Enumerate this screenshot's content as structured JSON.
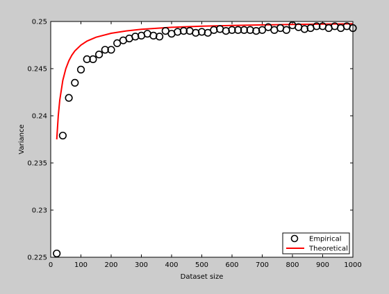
{
  "chart_data": {
    "type": "scatter",
    "title": "",
    "xlabel": "Dataset size",
    "ylabel": "Variance",
    "xlim": [
      0,
      1000
    ],
    "ylim": [
      0.225,
      0.25
    ],
    "xticks": [
      0,
      100,
      200,
      300,
      400,
      500,
      600,
      700,
      800,
      900,
      1000
    ],
    "xtick_labels": [
      "0",
      "100",
      "200",
      "300",
      "400",
      "500",
      "600",
      "700",
      "800",
      "900",
      "1000"
    ],
    "yticks": [
      0.225,
      0.23,
      0.235,
      0.24,
      0.245,
      0.25
    ],
    "ytick_labels": [
      "0.225",
      "0.23",
      "0.235",
      "0.24",
      "0.245",
      "0.25"
    ],
    "grid": false,
    "legend_position": "bottom-right",
    "series": [
      {
        "name": "Empirical",
        "style": "circle markers",
        "color": "#000000",
        "x": [
          20,
          40,
          60,
          80,
          100,
          120,
          140,
          160,
          180,
          200,
          220,
          240,
          260,
          280,
          300,
          320,
          340,
          360,
          380,
          400,
          420,
          440,
          460,
          480,
          500,
          520,
          540,
          560,
          580,
          600,
          620,
          640,
          660,
          680,
          700,
          720,
          740,
          760,
          780,
          800,
          820,
          840,
          860,
          880,
          900,
          920,
          940,
          960,
          980,
          1000
        ],
        "y": [
          0.2254,
          0.2379,
          0.2419,
          0.2435,
          0.2449,
          0.246,
          0.246,
          0.2465,
          0.247,
          0.247,
          0.2477,
          0.248,
          0.2482,
          0.2484,
          0.2485,
          0.2487,
          0.2485,
          0.2484,
          0.249,
          0.2487,
          0.2489,
          0.249,
          0.249,
          0.2488,
          0.2489,
          0.2488,
          0.2491,
          0.2492,
          0.249,
          0.2491,
          0.2491,
          0.2491,
          0.2491,
          0.249,
          0.2491,
          0.2494,
          0.2491,
          0.2493,
          0.2491,
          0.2496,
          0.2494,
          0.2492,
          0.2493,
          0.2495,
          0.2495,
          0.2493,
          0.2495,
          0.2493,
          0.2495,
          0.2493
        ]
      },
      {
        "name": "Theoretical",
        "style": "line",
        "color": "#ff0000",
        "formula": "0.25 - 0.25/n",
        "x": [
          20,
          25,
          30,
          40,
          50,
          60,
          70,
          80,
          100,
          120,
          150,
          200,
          250,
          300,
          400,
          500,
          600,
          700,
          800,
          900,
          1000
        ],
        "y": [
          0.2375,
          0.24,
          0.24167,
          0.24375,
          0.245,
          0.24583,
          0.24643,
          0.24688,
          0.2475,
          0.24792,
          0.24833,
          0.24875,
          0.249,
          0.24917,
          0.24938,
          0.2495,
          0.24958,
          0.24964,
          0.24969,
          0.24972,
          0.24975
        ]
      }
    ]
  }
}
